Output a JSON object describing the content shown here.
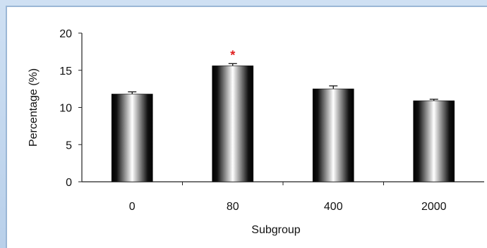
{
  "chart_data": {
    "type": "bar",
    "categories": [
      "0",
      "80",
      "400",
      "2000"
    ],
    "values": [
      11.8,
      15.6,
      12.5,
      10.9
    ],
    "error": [
      0.3,
      0.3,
      0.4,
      0.2
    ],
    "annotations": [
      {
        "category": "80",
        "text": "*",
        "color": "#e02020"
      }
    ],
    "xlabel": "Subgroup",
    "ylabel": "Percentage (%)",
    "ylim": [
      0,
      20
    ],
    "yticks": [
      0,
      5,
      10,
      15,
      20
    ],
    "grid": false,
    "legend": "none",
    "bar_style": "black-white-black cylindrical gradient"
  }
}
